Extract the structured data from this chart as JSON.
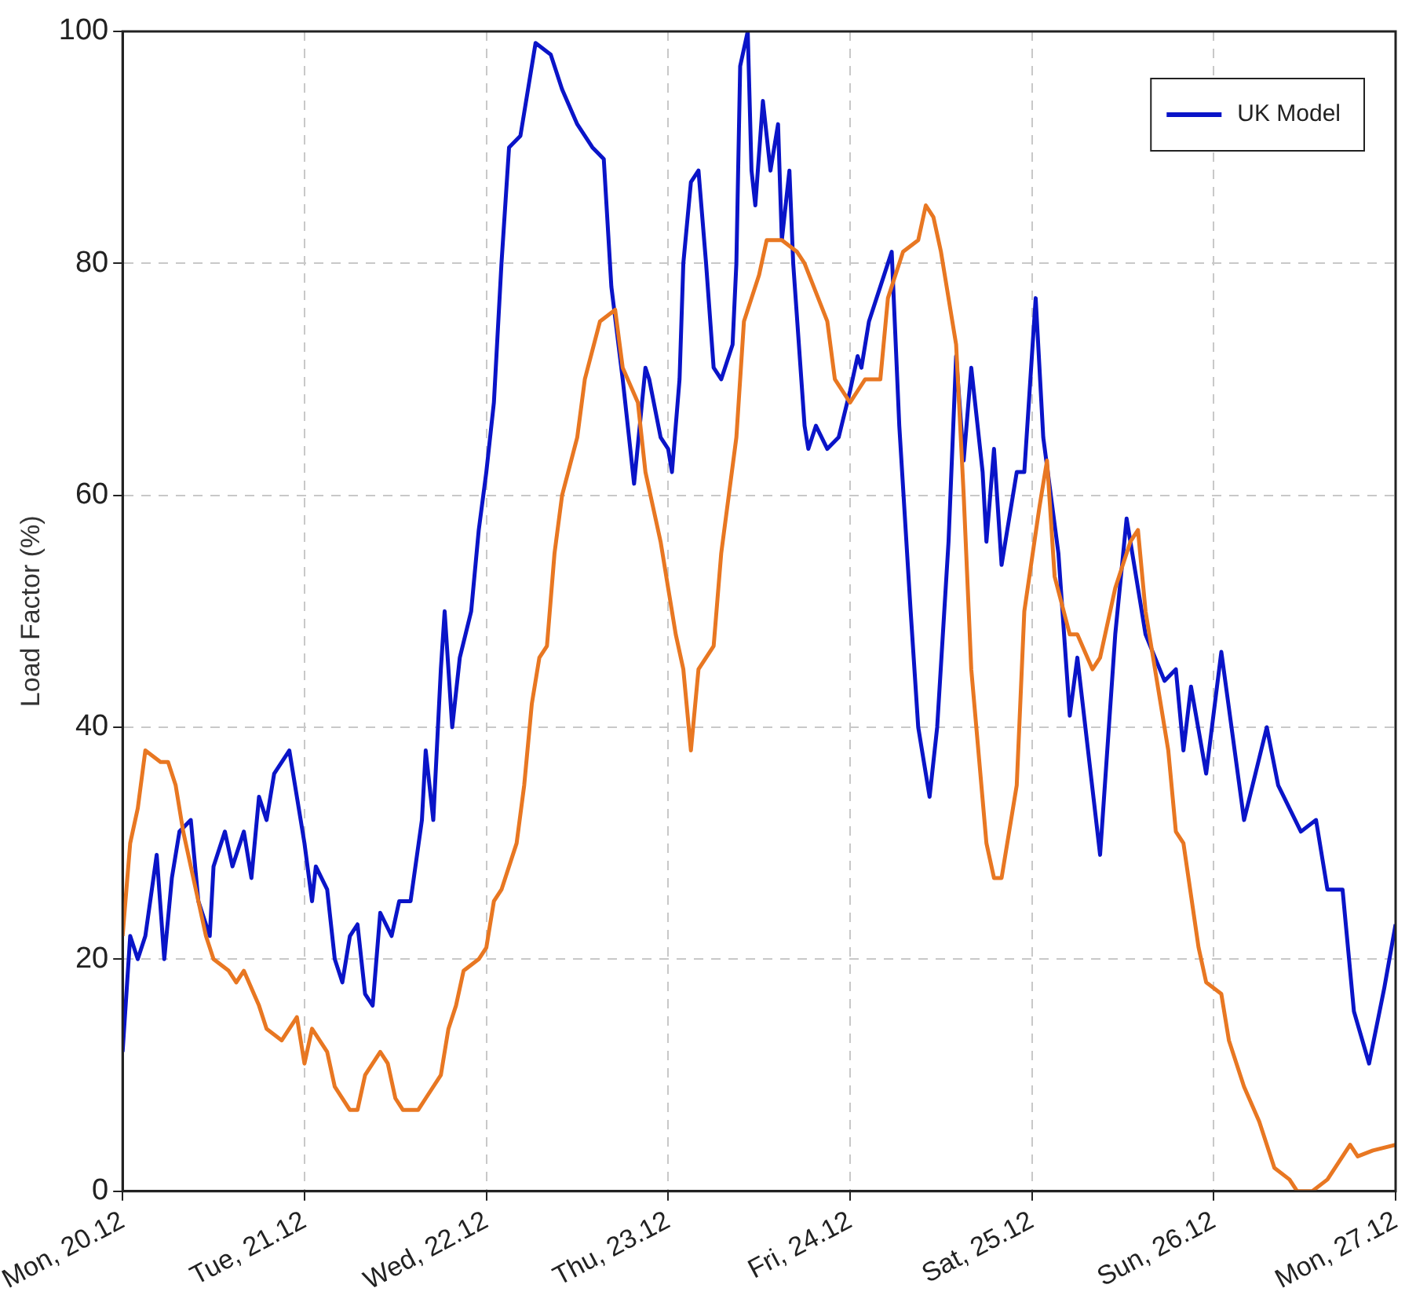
{
  "chart_data": {
    "type": "line",
    "ylabel": "Load Factor (%)",
    "xlim": [
      "--12-20",
      "--12-27"
    ],
    "ylim": [
      0,
      100
    ],
    "xticks": [
      {
        "value": "--12-20",
        "label": "Mon, 20.12"
      },
      {
        "value": "--12-21",
        "label": "Tue, 21.12"
      },
      {
        "value": "--12-22",
        "label": "Wed, 22.12"
      },
      {
        "value": "--12-23",
        "label": "Thu, 23.12"
      },
      {
        "value": "--12-24",
        "label": "Fri, 24.12"
      },
      {
        "value": "--12-25",
        "label": "Sat, 25.12"
      },
      {
        "value": "--12-26",
        "label": "Sun, 26.12"
      },
      {
        "value": "--12-27",
        "label": "Mon, 27.12"
      }
    ],
    "yticks": [
      0,
      20,
      40,
      60,
      80,
      100
    ],
    "grid": true,
    "legend": "top right",
    "line_style": "solid",
    "series": [
      {
        "color": "#e87722",
        "x": [
          "--12-20T00:00",
          "--12-20T01:00",
          "--12-20T02:00",
          "--12-20T03:00",
          "--12-20T05:00",
          "--12-20T06:00",
          "--12-20T07:00",
          "--12-20T08:00",
          "--12-20T09:00",
          "--12-20T10:00",
          "--12-20T11:00",
          "--12-20T12:00",
          "--12-20T14:00",
          "--12-20T15:00",
          "--12-20T16:00",
          "--12-20T18:00",
          "--12-20T19:00",
          "--12-20T21:00",
          "--12-20T23:00",
          "--12-21T00:00",
          "--12-21T01:00",
          "--12-21T03:00",
          "--12-21T04:00",
          "--12-21T06:00",
          "--12-21T07:00",
          "--12-21T08:00",
          "--12-21T10:00",
          "--12-21T11:00",
          "--12-21T12:00",
          "--12-21T13:00",
          "--12-21T15:00",
          "--12-21T16:00",
          "--12-21T18:00",
          "--12-21T19:00",
          "--12-21T20:00",
          "--12-21T21:00",
          "--12-21T23:00",
          "--12-22T00:00",
          "--12-22T01:00",
          "--12-22T02:00",
          "--12-22T04:00",
          "--12-22T05:00",
          "--12-22T06:00",
          "--12-22T07:00",
          "--12-22T08:00",
          "--12-22T09:00",
          "--12-22T10:00",
          "--12-22T12:00",
          "--12-22T13:00",
          "--12-22T15:00",
          "--12-22T17:00",
          "--12-22T18:00",
          "--12-22T20:00",
          "--12-22T21:00",
          "--12-22T22:00",
          "--12-22T23:00",
          "--12-23T00:00",
          "--12-23T01:00",
          "--12-23T02:00",
          "--12-23T03:00",
          "--12-23T04:00",
          "--12-23T06:00",
          "--12-23T07:00",
          "--12-23T09:00",
          "--12-23T10:00",
          "--12-23T12:00",
          "--12-23T13:00",
          "--12-23T15:00",
          "--12-23T17:00",
          "--12-23T18:00",
          "--12-23T21:00",
          "--12-23T22:00",
          "--12-24T00:00",
          "--12-24T01:00",
          "--12-24T02:00",
          "--12-24T04:00",
          "--12-24T05:00",
          "--12-24T06:00",
          "--12-24T07:00",
          "--12-24T09:00",
          "--12-24T10:00",
          "--12-24T11:00",
          "--12-24T12:00",
          "--12-24T14:00",
          "--12-24T15:00",
          "--12-24T16:00",
          "--12-24T18:00",
          "--12-24T19:00",
          "--12-24T20:00",
          "--12-24T22:00",
          "--12-24T23:00",
          "--12-25T01:00",
          "--12-25T02:00",
          "--12-25T03:00",
          "--12-25T05:00",
          "--12-25T06:00",
          "--12-25T08:00",
          "--12-25T09:00",
          "--12-25T11:00",
          "--12-25T13:00",
          "--12-25T14:00",
          "--12-25T15:00",
          "--12-25T16:00",
          "--12-25T18:00",
          "--12-25T19:00",
          "--12-25T20:00",
          "--12-25T22:00",
          "--12-25T23:00",
          "--12-26T01:00",
          "--12-26T02:00",
          "--12-26T04:00",
          "--12-26T06:00",
          "--12-26T07:00",
          "--12-26T08:00",
          "--12-26T10:00",
          "--12-26T11:00",
          "--12-26T13:00",
          "--12-26T15:00",
          "--12-26T17:00",
          "--12-26T18:00",
          "--12-26T19:00",
          "--12-26T21:00",
          "--12-27T00:00"
        ],
        "values": [
          22,
          30,
          33,
          38,
          37,
          37,
          35,
          31,
          28,
          25,
          22,
          20,
          19,
          18,
          19,
          16,
          14,
          13,
          15,
          11,
          14,
          12,
          9,
          7,
          7,
          10,
          12,
          11,
          8,
          7,
          7,
          8,
          10,
          14,
          16,
          19,
          20,
          21,
          25,
          26,
          30,
          35,
          42,
          46,
          47,
          55,
          60,
          65,
          70,
          75,
          76,
          71,
          68,
          62,
          59,
          56,
          52,
          48,
          45,
          38,
          45,
          47,
          55,
          65,
          75,
          79,
          82,
          82,
          81,
          80,
          75,
          70,
          68,
          69,
          70,
          70,
          77,
          79,
          81,
          82,
          85,
          84,
          81,
          73,
          60,
          45,
          30,
          27,
          27,
          35,
          50,
          59,
          63,
          53,
          48,
          48,
          45,
          46,
          52,
          56,
          57,
          50,
          46,
          38,
          31,
          30,
          21,
          18,
          17,
          13,
          9,
          6,
          4,
          2,
          1,
          0,
          0,
          1,
          3,
          4,
          3,
          3.5,
          4
        ]
      },
      {
        "name": "UK Model",
        "color": "#0a14c8",
        "x": [
          "--12-20T00:00",
          "--12-20T01:00",
          "--12-20T02:00",
          "--12-20T03:00",
          "--12-20T04:30",
          "--12-20T05:30",
          "--12-20T06:30",
          "--12-20T07:30",
          "--12-20T09:00",
          "--12-20T10:00",
          "--12-20T11:30",
          "--12-20T12:00",
          "--12-20T13:30",
          "--12-20T14:30",
          "--12-20T16:00",
          "--12-20T17:00",
          "--12-20T18:00",
          "--12-20T19:00",
          "--12-20T20:00",
          "--12-20T22:00",
          "--12-21T00:00",
          "--12-21T01:00",
          "--12-21T01:30",
          "--12-21T03:00",
          "--12-21T04:00",
          "--12-21T05:00",
          "--12-21T06:00",
          "--12-21T07:00",
          "--12-21T08:00",
          "--12-21T09:00",
          "--12-21T10:00",
          "--12-21T11:30",
          "--12-21T12:30",
          "--12-21T14:00",
          "--12-21T15:30",
          "--12-21T16:00",
          "--12-21T17:00",
          "--12-21T18:00",
          "--12-21T18:30",
          "--12-21T19:30",
          "--12-21T20:30",
          "--12-21T22:00",
          "--12-21T23:00",
          "--12-22T00:00",
          "--12-22T01:00",
          "--12-22T02:00",
          "--12-22T03:00",
          "--12-22T04:30",
          "--12-22T05:30",
          "--12-22T06:30",
          "--12-22T08:30",
          "--12-22T10:00",
          "--12-22T12:00",
          "--12-22T14:00",
          "--12-22T15:30",
          "--12-22T16:30",
          "--12-22T18:00",
          "--12-22T18:30",
          "--12-22T19:30",
          "--12-22T21:00",
          "--12-22T21:30",
          "--12-22T23:00",
          "--12-23T00:00",
          "--12-23T00:30",
          "--12-23T01:30",
          "--12-23T02:00",
          "--12-23T03:00",
          "--12-23T04:00",
          "--12-23T05:00",
          "--12-23T06:00",
          "--12-23T07:00",
          "--12-23T08:30",
          "--12-23T09:00",
          "--12-23T09:30",
          "--12-23T10:30",
          "--12-23T11:00",
          "--12-23T11:30",
          "--12-23T12:30",
          "--12-23T13:30",
          "--12-23T14:30",
          "--12-23T15:00",
          "--12-23T16:00",
          "--12-23T16:30",
          "--12-23T18:00",
          "--12-23T18:30",
          "--12-23T19:30",
          "--12-23T21:00",
          "--12-23T22:30",
          "--12-24T00:00",
          "--12-24T01:00",
          "--12-24T01:30",
          "--12-24T02:30",
          "--12-24T04:00",
          "--12-24T05:30",
          "--12-24T06:30",
          "--12-24T08:00",
          "--12-24T09:00",
          "--12-24T10:30",
          "--12-24T11:30",
          "--12-24T13:00",
          "--12-24T14:00",
          "--12-24T15:00",
          "--12-24T16:00",
          "--12-24T17:30",
          "--12-24T18:00",
          "--12-24T19:00",
          "--12-24T20:00",
          "--12-24T22:00",
          "--12-24T23:00",
          "--12-25T00:30",
          "--12-25T01:30",
          "--12-25T03:30",
          "--12-25T05:00",
          "--12-25T06:00",
          "--12-25T09:00",
          "--12-25T11:00",
          "--12-25T12:30",
          "--12-25T15:00",
          "--12-25T17:30",
          "--12-25T19:00",
          "--12-25T20:00",
          "--12-25T21:00",
          "--12-25T23:00",
          "--12-26T01:00",
          "--12-26T04:00",
          "--12-26T05:30",
          "--12-26T07:00",
          "--12-26T08:30",
          "--12-26T11:30",
          "--12-26T13:30",
          "--12-26T15:00",
          "--12-26T17:00",
          "--12-26T18:30",
          "--12-26T20:30",
          "--12-26T22:30",
          "--12-27T00:00"
        ],
        "values": [
          12,
          22,
          20,
          22,
          29,
          20,
          27,
          31,
          32,
          25,
          22,
          28,
          31,
          28,
          31,
          27,
          34,
          32,
          36,
          38,
          30,
          25,
          28,
          26,
          20,
          18,
          22,
          23,
          17,
          16,
          24,
          22,
          25,
          25,
          32,
          38,
          32,
          45,
          50,
          40,
          46,
          50,
          57,
          62,
          68,
          80,
          90,
          91,
          95,
          99,
          98,
          95,
          92,
          90,
          89,
          78,
          70,
          67,
          61,
          71,
          70,
          65,
          64,
          62,
          70,
          80,
          87,
          88,
          80,
          71,
          70,
          73,
          80,
          97,
          100,
          88,
          85,
          94,
          88,
          92,
          82,
          88,
          80,
          66,
          64,
          66,
          64,
          65,
          69,
          72,
          71,
          75,
          78,
          81,
          66,
          50,
          40,
          34,
          40,
          56,
          72,
          63,
          71,
          62,
          56,
          64,
          54,
          62,
          62,
          77,
          65,
          55,
          41,
          46,
          29,
          48,
          58,
          48,
          44,
          45,
          38,
          43.5,
          36,
          46.5,
          32,
          36,
          40,
          35,
          31,
          32,
          26,
          26,
          15.5,
          11,
          17.5,
          23
        ]
      }
    ]
  }
}
